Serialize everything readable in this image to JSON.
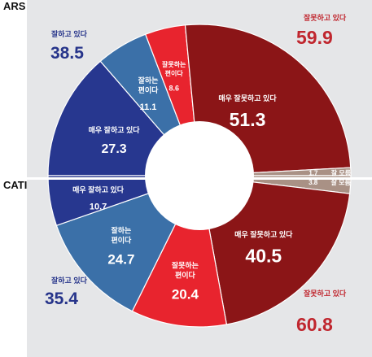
{
  "labels": {
    "top": "ARS",
    "bottom": "CATI"
  },
  "colors": {
    "very_good": "#27378f",
    "good": "#3b70a8",
    "bad": "#e8242e",
    "very_bad": "#8b1517",
    "dont_know": "#a99185",
    "accent_red": "#c0262e",
    "accent_blue": "#26348a",
    "panel_bg": "#e5e6e8"
  },
  "chart_data": [
    {
      "name": "ARS",
      "type": "pie",
      "half": "top",
      "segments": [
        {
          "label": "매우 잘하고 있다",
          "value": 27.3,
          "value_text": "27.3",
          "color_key": "very_good"
        },
        {
          "label": "잘하는 편이다",
          "value": 11.1,
          "value_text": "11.1",
          "color_key": "good"
        },
        {
          "label": "잘못하는 편이다",
          "value": 8.6,
          "value_text": "8.6",
          "color_key": "bad"
        },
        {
          "label": "매우 잘못하고 있다",
          "value": 51.3,
          "value_text": "51.3",
          "color_key": "very_bad"
        },
        {
          "label": "잘 모름",
          "value": 1.7,
          "value_text": "1.7",
          "color_key": "dont_know"
        }
      ],
      "summary": {
        "positive": {
          "label": "잘하고 있다",
          "value": 38.5,
          "value_text": "38.5"
        },
        "negative": {
          "label": "잘못하고 있다",
          "value": 59.9,
          "value_text": "59.9"
        }
      }
    },
    {
      "name": "CATI",
      "type": "pie",
      "half": "bottom",
      "segments": [
        {
          "label": "잘 모름",
          "value": 3.8,
          "value_text": "3.8",
          "color_key": "dont_know"
        },
        {
          "label": "매우 잘못하고 있다",
          "value": 40.5,
          "value_text": "40.5",
          "color_key": "very_bad"
        },
        {
          "label": "잘못하는 편이다",
          "value": 20.4,
          "value_text": "20.4",
          "color_key": "bad"
        },
        {
          "label": "잘하는 편이다",
          "value": 24.7,
          "value_text": "24.7",
          "color_key": "good"
        },
        {
          "label": "매우 잘하고 있다",
          "value": 10.7,
          "value_text": "10.7",
          "color_key": "very_good"
        }
      ],
      "summary": {
        "positive": {
          "label": "잘하고 있다",
          "value": 35.4,
          "value_text": "35.4"
        },
        "negative": {
          "label": "잘못하고 있다",
          "value": 60.8,
          "value_text": "60.8"
        }
      }
    }
  ]
}
